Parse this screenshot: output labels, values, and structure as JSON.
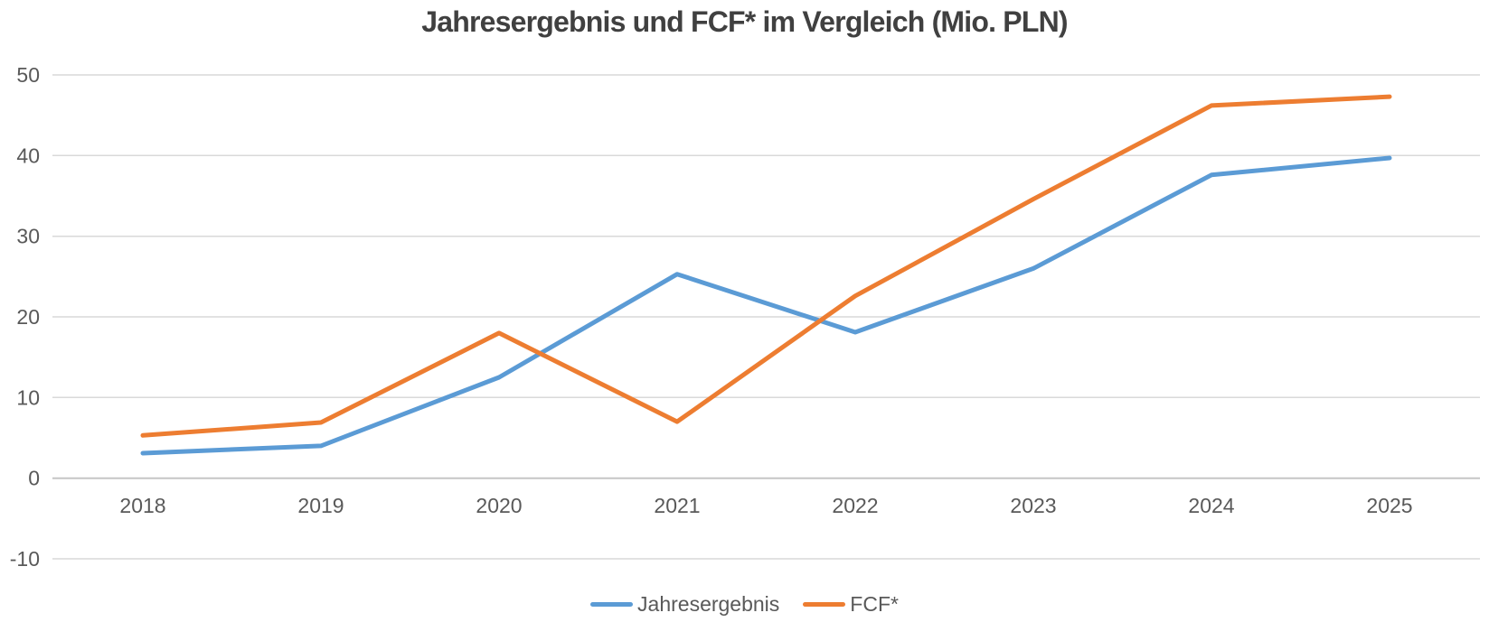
{
  "chart_data": {
    "type": "line",
    "title": "Jahresergebnis und FCF* im Vergleich (Mio. PLN)",
    "xlabel": "",
    "ylabel": "",
    "categories": [
      "2018",
      "2019",
      "2020",
      "2021",
      "2022",
      "2023",
      "2024",
      "2025"
    ],
    "series": [
      {
        "name": "Jahresergebnis",
        "color": "#5B9BD5",
        "values": [
          3.1,
          4.0,
          12.5,
          25.3,
          18.1,
          26.0,
          37.6,
          39.7
        ]
      },
      {
        "name": "FCF*",
        "color": "#ED7D31",
        "values": [
          5.3,
          6.9,
          18.0,
          7.0,
          22.6,
          34.6,
          46.2,
          47.3
        ]
      }
    ],
    "ylim": [
      -10,
      50
    ],
    "y_ticks": [
      50,
      40,
      30,
      20,
      10,
      0,
      -10
    ],
    "grid": "horizontal",
    "legend_position": "bottom",
    "colors": {
      "gridline": "#D9D9D9",
      "zero_line": "#C6C6C6",
      "tick_label": "#595959",
      "title": "#404040",
      "legend_text": "#595959",
      "background": "#FFFFFF"
    }
  }
}
